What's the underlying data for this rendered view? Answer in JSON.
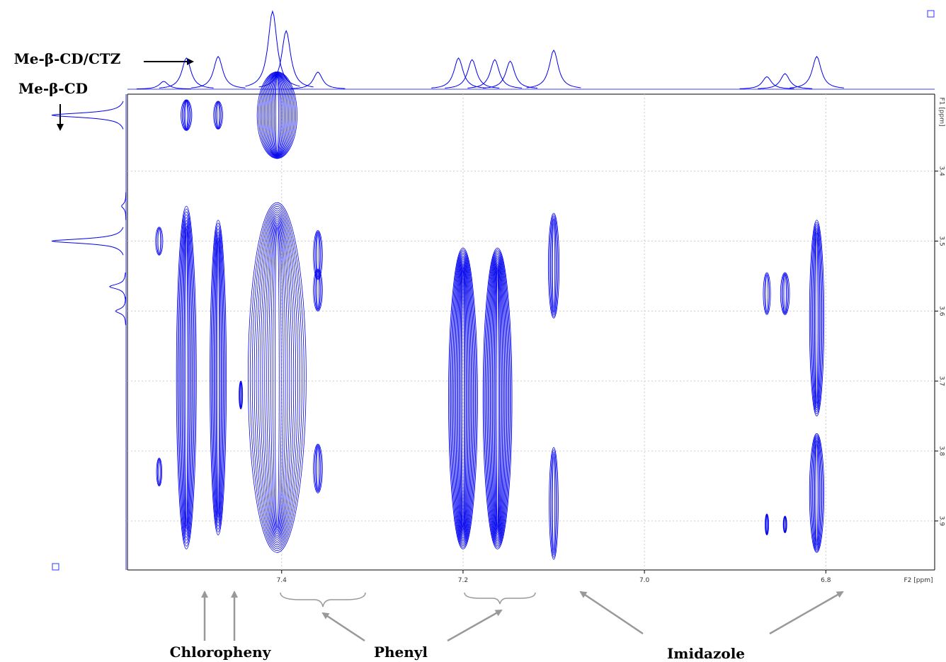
{
  "chart_data": {
    "type": "contour",
    "xlabel": "F2 [ppm]",
    "ylabel": "F1 [ppm]",
    "xlim": [
      7.57,
      6.68
    ],
    "ylim": [
      3.29,
      3.97
    ],
    "xticks": [
      7.4,
      7.2,
      {
        "value": 7,
        "label": "7.0"
      },
      6.8
    ],
    "yticks": [
      3.4,
      3.5,
      3.6,
      3.7,
      3.8,
      3.9
    ],
    "grid": true,
    "color": "#0000ee",
    "peaks": {
      "x": [
        7.505,
        7.47,
        7.405,
        7.505,
        7.47,
        7.405,
        7.36,
        7.36,
        7.36,
        7.2,
        7.162,
        7.1,
        7.1,
        6.865,
        6.845,
        6.81,
        6.81,
        6.865,
        6.845,
        7.535,
        7.535,
        7.445
      ],
      "y": [
        3.32,
        3.32,
        3.32,
        3.695,
        3.695,
        3.695,
        3.52,
        3.57,
        3.825,
        3.725,
        3.725,
        3.535,
        3.875,
        3.575,
        3.575,
        3.61,
        3.86,
        3.905,
        3.905,
        3.5,
        3.83,
        3.72
      ],
      "dx": [
        0.006,
        0.005,
        0.022,
        0.011,
        0.009,
        0.032,
        0.005,
        0.005,
        0.005,
        0.016,
        0.016,
        0.006,
        0.005,
        0.004,
        0.005,
        0.008,
        0.008,
        0.002,
        0.002,
        0.004,
        0.003,
        0.002
      ],
      "dy": [
        0.022,
        0.02,
        0.062,
        0.245,
        0.225,
        0.25,
        0.035,
        0.03,
        0.035,
        0.215,
        0.215,
        0.075,
        0.08,
        0.03,
        0.03,
        0.14,
        0.085,
        0.015,
        0.012,
        0.02,
        0.02,
        0.02
      ]
    },
    "top_projection": {
      "x": [
        7.53,
        7.505,
        7.47,
        7.41,
        7.395,
        7.36,
        7.205,
        7.19,
        7.165,
        7.148,
        7.1,
        6.865,
        6.845,
        6.81
      ],
      "intensity": [
        10,
        40,
        42,
        100,
        75,
        22,
        40,
        38,
        38,
        36,
        50,
        16,
        20,
        42
      ]
    },
    "left_projection": {
      "y": [
        3.32,
        3.5,
        3.565,
        3.6,
        3.45
      ],
      "intensity": [
        100,
        100,
        22,
        14,
        6
      ]
    },
    "annotations": [
      "Me-β-CD/CTZ",
      "Me-β-CD",
      "Chloropheny",
      "Phenyl",
      "Imidazole"
    ]
  }
}
